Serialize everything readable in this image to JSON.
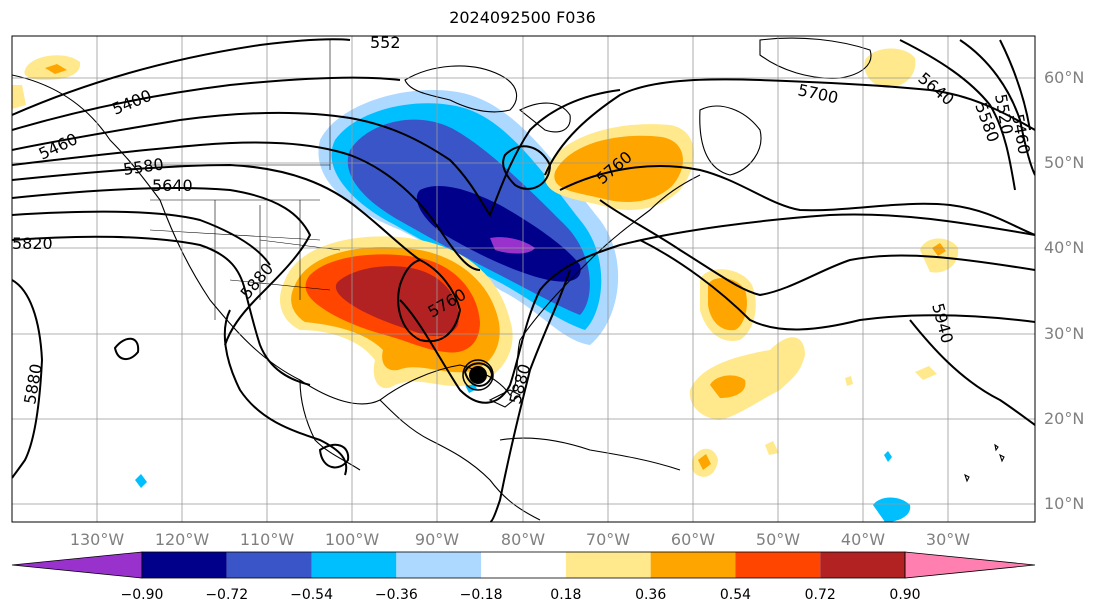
{
  "title": "2024092500 F036",
  "lat_labels": [
    "60°N",
    "50°N",
    "40°N",
    "30°N",
    "20°N",
    "10°N"
  ],
  "lon_labels": [
    "130°W",
    "120°W",
    "110°W",
    "100°W",
    "90°W",
    "80°W",
    "70°W",
    "60°W",
    "50°W",
    "40°W",
    "30°W"
  ],
  "contour_labels": [
    "5400",
    "5460",
    "5520",
    "5580",
    "5640",
    "5700",
    "5760",
    "5820",
    "5880",
    "5940"
  ],
  "colorbar": {
    "ticks": [
      "−0.90",
      "−0.72",
      "−0.54",
      "−0.36",
      "−0.18",
      "0.18",
      "0.36",
      "0.54",
      "0.72",
      "0.90"
    ],
    "colors": [
      "#9932cc",
      "#00008b",
      "#3a55c8",
      "#00bfff",
      "#add8ff",
      "#ffffff",
      "#ffe98c",
      "#ffa500",
      "#ff4500",
      "#b22222",
      "#ff7fb0"
    ]
  }
}
